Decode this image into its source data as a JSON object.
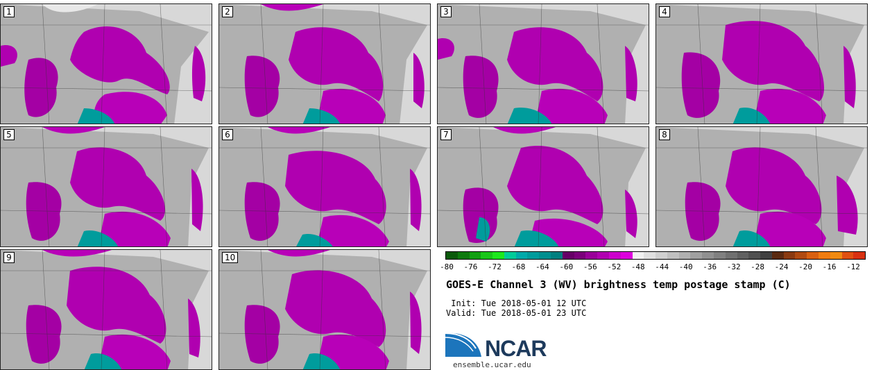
{
  "panels": [
    {
      "label": "1"
    },
    {
      "label": "2"
    },
    {
      "label": "3"
    },
    {
      "label": "4"
    },
    {
      "label": "5"
    },
    {
      "label": "6"
    },
    {
      "label": "7"
    },
    {
      "label": "8"
    },
    {
      "label": "9"
    },
    {
      "label": "10"
    }
  ],
  "colorbar": {
    "colors": [
      "#0a5a0a",
      "#0d7a0d",
      "#11a011",
      "#19c619",
      "#1de81d",
      "#00cc99",
      "#00aaaa",
      "#009c9c",
      "#008f8f",
      "#007f7f",
      "#660066",
      "#7a007a",
      "#990099",
      "#b000b0",
      "#cc00cc",
      "#dd00dd",
      "#f0f0f0",
      "#e0e0e0",
      "#d0d0d0",
      "#c0c0c0",
      "#b0b0b0",
      "#a0a0a0",
      "#909090",
      "#808080",
      "#707070",
      "#606060",
      "#505050",
      "#404040",
      "#5a2a10",
      "#8a3a10",
      "#b04a10",
      "#d86010",
      "#f07c10",
      "#f08a10",
      "#e05010",
      "#d83010"
    ],
    "tick_labels": [
      "-80",
      "-76",
      "-72",
      "-68",
      "-64",
      "-60",
      "-56",
      "-52",
      "-48",
      "-44",
      "-40",
      "-36",
      "-32",
      "-28",
      "-24",
      "-20",
      "-16",
      "-12"
    ]
  },
  "title": "GOES-E Channel 3 (WV) brightness temp postage stamp (C)",
  "init": " Init: Tue 2018-05-01 12 UTC",
  "valid": "Valid: Tue 2018-05-01 23 UTC",
  "logo": {
    "text": "NCAR",
    "url": "ensemble.ucar.edu"
  }
}
